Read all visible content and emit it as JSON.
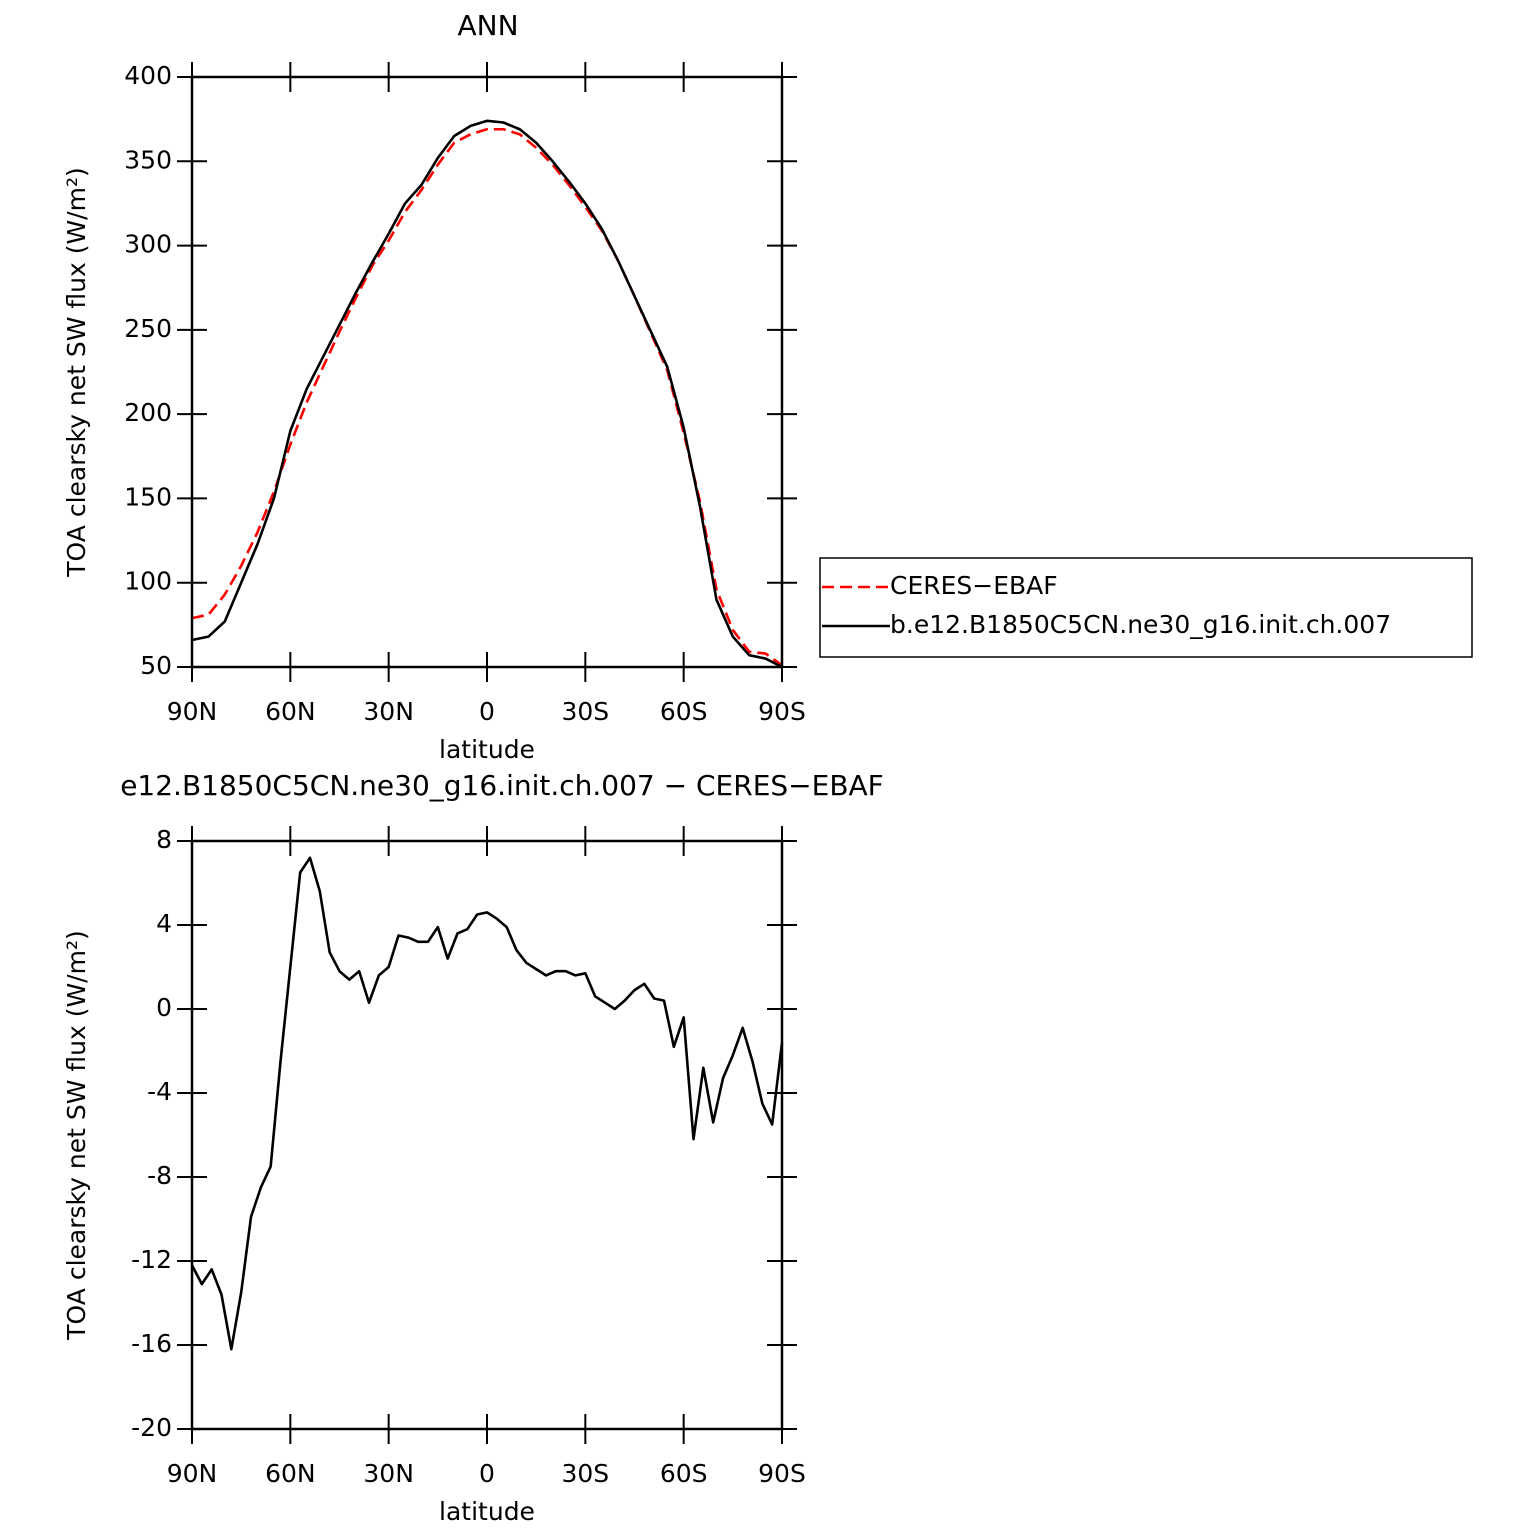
{
  "chart_data": [
    {
      "type": "line",
      "title": "ANN",
      "xlabel": "latitude",
      "ylabel": "TOA clearsky net SW flux (W/m²)",
      "x": [
        90,
        85,
        80,
        75,
        70,
        65,
        60,
        55,
        50,
        45,
        40,
        35,
        30,
        25,
        20,
        15,
        10,
        5,
        0,
        -5,
        -10,
        -15,
        -20,
        -25,
        -30,
        -35,
        -40,
        -45,
        -50,
        -55,
        -60,
        -65,
        -70,
        -75,
        -80,
        -85,
        -90
      ],
      "series": [
        {
          "name": "CERES−EBAF",
          "color": "#ff0000",
          "line_style": "dashed",
          "values": [
            79,
            81,
            93,
            110,
            130,
            154,
            182,
            207,
            228,
            249,
            269,
            288,
            303,
            320,
            333,
            348,
            361,
            366,
            369,
            369,
            366,
            358,
            348,
            336,
            323,
            309,
            291,
            270,
            248,
            226,
            189,
            148,
            96,
            72,
            59,
            58,
            51
          ]
        },
        {
          "name": "b.e12.B1850C5CN.ne30_g16.init.ch.007",
          "color": "#000000",
          "line_style": "solid",
          "values": [
            66,
            68,
            77,
            100,
            123,
            150,
            190,
            215,
            234,
            253,
            272,
            290,
            307,
            325,
            336,
            352,
            365,
            371,
            374,
            373,
            369,
            361,
            350,
            338,
            325,
            310,
            291,
            270,
            249,
            228,
            192,
            145,
            90,
            68,
            57,
            55,
            50
          ]
        }
      ],
      "xlim": [
        90,
        -90
      ],
      "xticks": [
        {
          "value": 90,
          "label": "90N"
        },
        {
          "value": 60,
          "label": "60N"
        },
        {
          "value": 30,
          "label": "30N"
        },
        0,
        {
          "value": -30,
          "label": "30S"
        },
        {
          "value": -60,
          "label": "60S"
        },
        {
          "value": -90,
          "label": "90S"
        }
      ],
      "ylim": [
        50,
        400
      ],
      "yticks": [
        50,
        100,
        150,
        200,
        250,
        300,
        350,
        400
      ],
      "legend": "outside-right"
    },
    {
      "type": "line",
      "title": "e12.B1850C5CN.ne30_g16.init.ch.007 − CERES−EBAF",
      "xlabel": "latitude",
      "ylabel": "TOA clearsky net SW flux (W/m²)",
      "x": [
        90,
        87,
        84,
        81,
        78,
        75,
        72,
        69,
        66,
        63,
        60,
        57,
        54,
        51,
        48,
        45,
        42,
        39,
        36,
        33,
        30,
        27,
        24,
        21,
        18,
        15,
        12,
        9,
        6,
        3,
        0,
        -3,
        -6,
        -9,
        -12,
        -15,
        -18,
        -21,
        -24,
        -27,
        -30,
        -33,
        -36,
        -39,
        -42,
        -45,
        -48,
        -51,
        -54,
        -57,
        -60,
        -63,
        -66,
        -69,
        -72,
        -75,
        -78,
        -81,
        -84,
        -87,
        -90
      ],
      "values": [
        -12.2,
        -13.1,
        -12.4,
        -13.6,
        -16.2,
        -13.5,
        -9.9,
        -8.5,
        -7.5,
        -2.5,
        2,
        6.5,
        7.2,
        5.6,
        2.7,
        1.8,
        1.4,
        1.8,
        0.3,
        1.6,
        2,
        3.5,
        3.4,
        3.2,
        3.2,
        3.9,
        2.4,
        3.6,
        3.8,
        4.5,
        4.6,
        4.3,
        3.9,
        2.8,
        2.2,
        1.9,
        1.6,
        1.8,
        1.8,
        1.6,
        1.7,
        0.6,
        0.3,
        0,
        0.4,
        0.9,
        1.2,
        0.5,
        0.4,
        -1.8,
        -0.4,
        -6.2,
        -2.8,
        -5.4,
        -3.3,
        -2.2,
        -0.9,
        -2.5,
        -4.5,
        -5.5,
        -1.6
      ],
      "color": "#000000",
      "xlim": [
        90,
        -90
      ],
      "xticks": [
        {
          "value": 90,
          "label": "90N"
        },
        {
          "value": 60,
          "label": "60N"
        },
        {
          "value": 30,
          "label": "30N"
        },
        0,
        {
          "value": -30,
          "label": "30S"
        },
        {
          "value": -60,
          "label": "60S"
        },
        {
          "value": -90,
          "label": "90S"
        }
      ],
      "ylim": [
        -20,
        8
      ],
      "yticks": [
        -20,
        -16,
        -12,
        -8,
        -4,
        0,
        4,
        8
      ]
    }
  ]
}
